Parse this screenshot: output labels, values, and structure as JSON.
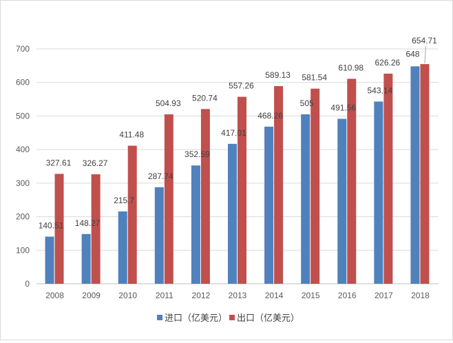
{
  "chart_data": {
    "type": "bar",
    "categories": [
      "2008",
      "2009",
      "2010",
      "2011",
      "2012",
      "2013",
      "2014",
      "2015",
      "2016",
      "2017",
      "2018"
    ],
    "series": [
      {
        "name": "进口（亿美元）",
        "color": "#4f81bd",
        "values": [
          140.51,
          148.27,
          215.7,
          287.74,
          352.59,
          417.01,
          468.26,
          505,
          491.56,
          543.14,
          648
        ],
        "labels": [
          "140.51",
          "148.27",
          "215.7",
          "287.74",
          "352.59",
          "417.01",
          "468.26",
          "505",
          "491.56",
          "543.14",
          "648"
        ]
      },
      {
        "name": "出口（亿美元）",
        "color": "#c0504d",
        "values": [
          327.61,
          326.27,
          411.48,
          504.93,
          520.74,
          557.26,
          589.13,
          581.54,
          610.98,
          626.26,
          654.71
        ],
        "labels": [
          "327.61",
          "326.27",
          "411.48",
          "504.93",
          "520.74",
          "557.26",
          "589.13",
          "581.54",
          "610.98",
          "626.26",
          "654.71"
        ]
      }
    ],
    "ylim": [
      0,
      700
    ],
    "yticks": [
      "0",
      "100",
      "200",
      "300",
      "400",
      "500",
      "600",
      "700"
    ],
    "grid": true,
    "legend_position": "bottom"
  }
}
